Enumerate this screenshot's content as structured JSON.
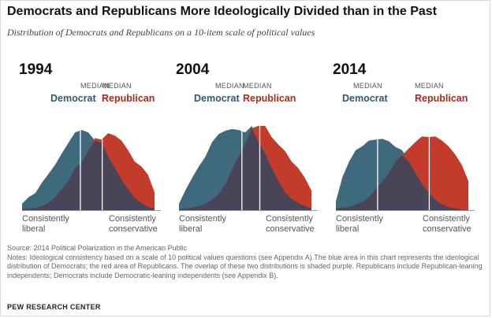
{
  "title": "Democrats and Republicans More Ideologically Divided than in the Past",
  "subtitle": "Distribution of Democrats and Republicans on a 10-item scale of political values",
  "labels": {
    "median": "MEDIAN",
    "democrat": "Democrat",
    "republican": "Republican",
    "left_line1": "Consistently",
    "left_line2": "liberal",
    "right_line1": "Consistently",
    "right_line2": "conservative"
  },
  "colors": {
    "democrat": "#3f6a7d",
    "republican": "#c23b2b",
    "overlap": "#4a4458",
    "axis": "#999999",
    "median_line": "#ffffff"
  },
  "chart_data": [
    {
      "type": "area",
      "title": "1994",
      "x": [
        -10,
        -9,
        -8,
        -7,
        -6,
        -5,
        -4,
        -3,
        -2,
        -1,
        0,
        1,
        2,
        3,
        4,
        5,
        6,
        7,
        8,
        9,
        10
      ],
      "series": [
        {
          "name": "Democrat",
          "values": [
            0.8,
            1.6,
            2.1,
            3.4,
            4.5,
            5.6,
            7.0,
            8.3,
            9.6,
            9.9,
            9.6,
            8.6,
            8.3,
            6.6,
            5.2,
            3.8,
            2.6,
            1.5,
            0.9,
            0.4,
            0.2
          ]
        },
        {
          "name": "Republican",
          "values": [
            0.1,
            0.2,
            0.3,
            0.5,
            0.9,
            1.6,
            2.6,
            3.6,
            5.2,
            5.9,
            7.4,
            8.9,
            8.7,
            9.5,
            9.2,
            8.6,
            7.4,
            6.0,
            5.4,
            4.4,
            2.2
          ]
        }
      ],
      "medians": {
        "Democrat": -1.2,
        "Republican": 2.1
      },
      "ylim": [
        0,
        13.5
      ]
    },
    {
      "type": "area",
      "title": "2004",
      "x": [
        -10,
        -9,
        -8,
        -7,
        -6,
        -5,
        -4,
        -3,
        -2,
        -1,
        0,
        1,
        2,
        3,
        4,
        5,
        6,
        7,
        8,
        9,
        10
      ],
      "series": [
        {
          "name": "Democrat",
          "values": [
            0.8,
            2.5,
            4.0,
            5.4,
            6.6,
            8.4,
            9.4,
            9.8,
            10.0,
            9.9,
            9.6,
            10.4,
            8.4,
            7.0,
            5.2,
            3.6,
            2.2,
            1.4,
            0.9,
            0.5,
            0.2
          ]
        },
        {
          "name": "Republican",
          "values": [
            0.1,
            0.2,
            0.3,
            0.5,
            0.8,
            1.3,
            2.0,
            3.2,
            5.0,
            6.6,
            8.2,
            10.1,
            10.4,
            10.4,
            9.0,
            8.1,
            7.3,
            6.0,
            5.2,
            4.0,
            2.4
          ]
        }
      ],
      "medians": {
        "Democrat": -0.5,
        "Republican": 2.2
      },
      "ylim": [
        0,
        13.5
      ]
    },
    {
      "type": "area",
      "title": "2014",
      "x": [
        -10,
        -9,
        -8,
        -7,
        -6,
        -5,
        -4,
        -3,
        -2,
        -1,
        0,
        1,
        2,
        3,
        4,
        5,
        6,
        7,
        8,
        9,
        10
      ],
      "series": [
        {
          "name": "Democrat",
          "values": [
            1.1,
            4.1,
            6.0,
            7.4,
            7.9,
            8.6,
            8.7,
            8.8,
            8.5,
            7.8,
            7.4,
            6.0,
            4.6,
            3.2,
            2.2,
            1.3,
            0.7,
            0.4,
            0.2,
            0.1,
            0.0
          ]
        },
        {
          "name": "Republican",
          "values": [
            0.2,
            0.3,
            0.4,
            0.7,
            1.0,
            1.6,
            2.6,
            3.5,
            4.6,
            6.0,
            6.8,
            7.6,
            8.4,
            9.1,
            9.0,
            9.1,
            8.6,
            7.9,
            6.9,
            5.6,
            3.6
          ]
        }
      ],
      "medians": {
        "Democrat": -3.7,
        "Republican": 4.1
      },
      "ylim": [
        0,
        13.5
      ]
    }
  ],
  "footer": {
    "source": "Source: 2014 Political Polarization in the American Public",
    "notes": "Notes: Ideological consistency based on a scale of 10 political values questions (see Appendix A).The blue area in this chart represents the ideological distribution of Democrats; the red area of Republicans. The overlap of these two distributions is shaded purple. Republicans include Republican-leaning independents; Democrats include Democratic-leaning independents (see Appendix B).",
    "org": "PEW RESEARCH CENTER"
  }
}
